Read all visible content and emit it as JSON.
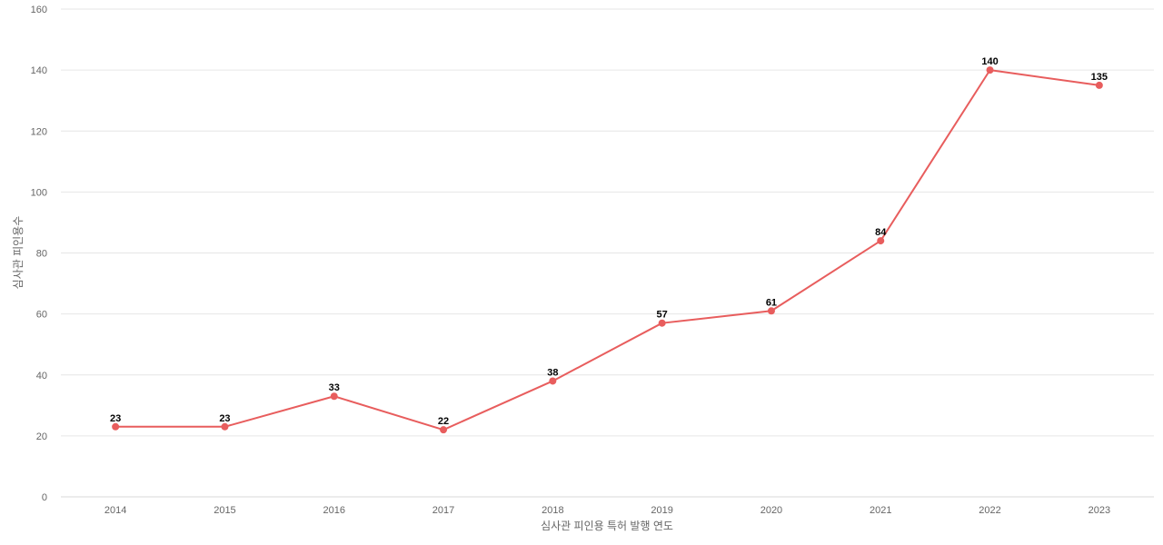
{
  "chart_data": {
    "type": "line",
    "title": "",
    "xlabel": "심사관 피인용 특허 발행 연도",
    "ylabel": "심사관 피인용수",
    "categories": [
      "2014",
      "2015",
      "2016",
      "2017",
      "2018",
      "2019",
      "2020",
      "2021",
      "2022",
      "2023"
    ],
    "series": [
      {
        "values": [
          23,
          23,
          33,
          22,
          38,
          57,
          61,
          84,
          140,
          135
        ],
        "color": "#e85d5d"
      }
    ],
    "ylim": [
      0,
      160
    ],
    "yticks": [
      0,
      20,
      40,
      60,
      80,
      100,
      120,
      140,
      160
    ],
    "grid": true,
    "legend": "none",
    "data_labels": true
  }
}
